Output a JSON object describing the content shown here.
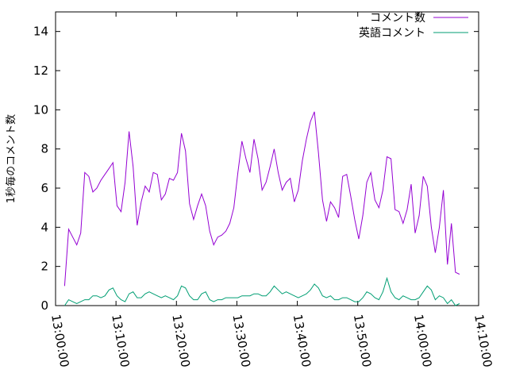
{
  "chart_data": {
    "type": "line",
    "title": "",
    "xlabel": "",
    "ylabel": "1秒毎のコメント数",
    "xlim": [
      "13:00:00",
      "14:10:00"
    ],
    "ylim": [
      0,
      15
    ],
    "yticks": [
      0,
      2,
      4,
      6,
      8,
      10,
      12,
      14
    ],
    "xticks": [
      "13:00:00",
      "13:10:00",
      "13:20:00",
      "13:30:00",
      "13:40:00",
      "13:50:00",
      "14:00:00",
      "14:10:00"
    ],
    "grid": false,
    "legend": "top-right",
    "series": [
      {
        "name": "コメント数",
        "color": "#9400d3",
        "x": [
          "13:01:30",
          "13:02:10",
          "13:02:50",
          "13:03:30",
          "13:04:10",
          "13:04:50",
          "13:05:30",
          "13:06:10",
          "13:06:50",
          "13:07:30",
          "13:08:10",
          "13:08:50",
          "13:09:30",
          "13:10:10",
          "13:10:50",
          "13:11:30",
          "13:12:10",
          "13:12:50",
          "13:13:30",
          "13:14:10",
          "13:14:50",
          "13:15:30",
          "13:16:10",
          "13:16:50",
          "13:17:30",
          "13:18:10",
          "13:18:50",
          "13:19:30",
          "13:20:10",
          "13:20:50",
          "13:21:30",
          "13:22:10",
          "13:22:50",
          "13:23:30",
          "13:24:10",
          "13:24:50",
          "13:25:30",
          "13:26:10",
          "13:26:50",
          "13:27:30",
          "13:28:10",
          "13:28:50",
          "13:29:30",
          "13:30:10",
          "13:30:50",
          "13:31:30",
          "13:32:10",
          "13:32:50",
          "13:33:30",
          "13:34:10",
          "13:34:50",
          "13:35:30",
          "13:36:10",
          "13:36:50",
          "13:37:30",
          "13:38:10",
          "13:38:50",
          "13:39:30",
          "13:40:10",
          "13:40:50",
          "13:41:30",
          "13:42:10",
          "13:42:50",
          "13:43:30",
          "13:44:10",
          "13:44:50",
          "13:45:30",
          "13:46:10",
          "13:46:50",
          "13:47:30",
          "13:48:10",
          "13:48:50",
          "13:49:30",
          "13:50:10",
          "13:50:50",
          "13:51:30",
          "13:52:10",
          "13:52:50",
          "13:53:30",
          "13:54:10",
          "13:54:50",
          "13:55:30",
          "13:56:10",
          "13:56:50",
          "13:57:30",
          "13:58:10",
          "13:58:50",
          "13:59:30",
          "14:00:10",
          "14:00:50",
          "14:01:30",
          "14:02:10",
          "14:02:50",
          "14:03:30",
          "14:04:10",
          "14:04:50",
          "14:05:30",
          "14:06:10",
          "14:06:50"
        ],
        "y": [
          1.0,
          3.9,
          3.5,
          3.1,
          3.7,
          6.8,
          6.6,
          5.8,
          6.0,
          6.4,
          6.7,
          7.0,
          7.3,
          5.1,
          4.8,
          6.3,
          8.9,
          7.1,
          4.1,
          5.3,
          6.1,
          5.8,
          6.8,
          6.7,
          5.4,
          5.7,
          6.5,
          6.4,
          6.8,
          8.8,
          7.9,
          5.2,
          4.4,
          5.1,
          5.7,
          5.1,
          3.8,
          3.1,
          3.5,
          3.6,
          3.8,
          4.2,
          5.0,
          6.8,
          8.4,
          7.5,
          6.8,
          8.5,
          7.5,
          5.9,
          6.3,
          7.1,
          8.0,
          6.8,
          5.9,
          6.3,
          6.5,
          5.3,
          5.9,
          7.4,
          8.5,
          9.4,
          9.9,
          7.8,
          5.4,
          4.3,
          5.3,
          5.0,
          4.5,
          6.6,
          6.7,
          5.6,
          4.4,
          3.4,
          4.6,
          6.3,
          6.8,
          5.4,
          5.0,
          5.9,
          7.6,
          7.5,
          4.9,
          4.8,
          4.2,
          4.9,
          6.2,
          3.7,
          4.6,
          6.6,
          6.1,
          4.0,
          2.7,
          4.0,
          5.9,
          2.1,
          4.2,
          1.7,
          1.6
        ]
      },
      {
        "name": "英語コメント",
        "color": "#009e73",
        "x": [
          "13:01:30",
          "13:02:10",
          "13:02:50",
          "13:03:30",
          "13:04:10",
          "13:04:50",
          "13:05:30",
          "13:06:10",
          "13:06:50",
          "13:07:30",
          "13:08:10",
          "13:08:50",
          "13:09:30",
          "13:10:10",
          "13:10:50",
          "13:11:30",
          "13:12:10",
          "13:12:50",
          "13:13:30",
          "13:14:10",
          "13:14:50",
          "13:15:30",
          "13:16:10",
          "13:16:50",
          "13:17:30",
          "13:18:10",
          "13:18:50",
          "13:19:30",
          "13:20:10",
          "13:20:50",
          "13:21:30",
          "13:22:10",
          "13:22:50",
          "13:23:30",
          "13:24:10",
          "13:24:50",
          "13:25:30",
          "13:26:10",
          "13:26:50",
          "13:27:30",
          "13:28:10",
          "13:28:50",
          "13:29:30",
          "13:30:10",
          "13:30:50",
          "13:31:30",
          "13:32:10",
          "13:32:50",
          "13:33:30",
          "13:34:10",
          "13:34:50",
          "13:35:30",
          "13:36:10",
          "13:36:50",
          "13:37:30",
          "13:38:10",
          "13:38:50",
          "13:39:30",
          "13:40:10",
          "13:40:50",
          "13:41:30",
          "13:42:10",
          "13:42:50",
          "13:43:30",
          "13:44:10",
          "13:44:50",
          "13:45:30",
          "13:46:10",
          "13:46:50",
          "13:47:30",
          "13:48:10",
          "13:48:50",
          "13:49:30",
          "13:50:10",
          "13:50:50",
          "13:51:30",
          "13:52:10",
          "13:52:50",
          "13:53:30",
          "13:54:10",
          "13:54:50",
          "13:55:30",
          "13:56:10",
          "13:56:50",
          "13:57:30",
          "13:58:10",
          "13:58:50",
          "13:59:30",
          "14:00:10",
          "14:00:50",
          "14:01:30",
          "14:02:10",
          "14:02:50",
          "14:03:30",
          "14:04:10",
          "14:04:50",
          "14:05:30",
          "14:06:10",
          "14:06:50"
        ],
        "y": [
          0.0,
          0.3,
          0.2,
          0.1,
          0.2,
          0.3,
          0.3,
          0.5,
          0.5,
          0.4,
          0.5,
          0.8,
          0.9,
          0.5,
          0.3,
          0.2,
          0.6,
          0.7,
          0.4,
          0.4,
          0.6,
          0.7,
          0.6,
          0.5,
          0.4,
          0.5,
          0.4,
          0.3,
          0.5,
          1.0,
          0.9,
          0.5,
          0.3,
          0.3,
          0.6,
          0.7,
          0.3,
          0.2,
          0.3,
          0.3,
          0.4,
          0.4,
          0.4,
          0.4,
          0.5,
          0.5,
          0.5,
          0.6,
          0.6,
          0.5,
          0.5,
          0.7,
          1.0,
          0.8,
          0.6,
          0.7,
          0.6,
          0.5,
          0.4,
          0.5,
          0.6,
          0.8,
          1.1,
          0.9,
          0.5,
          0.4,
          0.5,
          0.3,
          0.3,
          0.4,
          0.4,
          0.3,
          0.2,
          0.2,
          0.4,
          0.7,
          0.6,
          0.4,
          0.3,
          0.7,
          1.4,
          0.7,
          0.4,
          0.3,
          0.5,
          0.4,
          0.3,
          0.3,
          0.4,
          0.7,
          1.0,
          0.8,
          0.3,
          0.5,
          0.4,
          0.1,
          0.3,
          0.0,
          0.1
        ]
      }
    ]
  }
}
